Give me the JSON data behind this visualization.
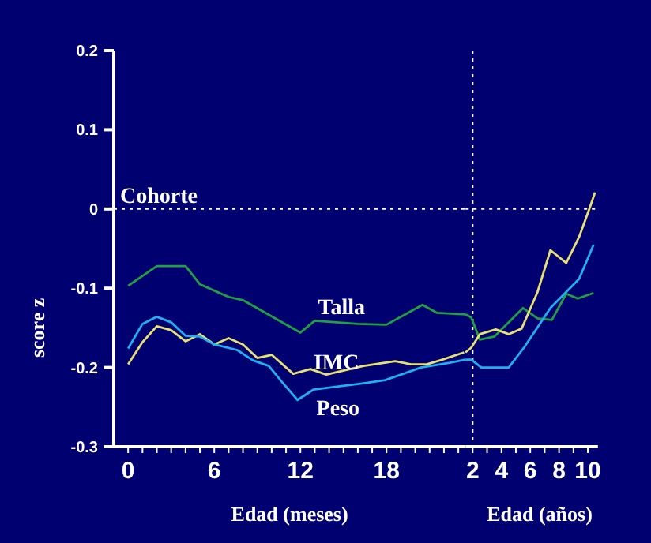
{
  "chart_data": [
    {
      "type": "line",
      "xlabel": "Edad (meses)",
      "ylabel": "score z",
      "xlim": [
        -1,
        23.5
      ],
      "ylim": [
        -0.3,
        0.2
      ],
      "xticks": [
        0,
        {
          "value": 1,
          "label": null
        },
        {
          "value": 2,
          "label": null
        },
        {
          "value": 3,
          "label": null
        },
        {
          "value": 4,
          "label": null
        },
        {
          "value": 5,
          "label": null
        },
        6,
        {
          "value": 7,
          "label": null
        },
        {
          "value": 8,
          "label": null
        },
        {
          "value": 9,
          "label": null
        },
        {
          "value": 10,
          "label": null
        },
        {
          "value": 11,
          "label": null
        },
        12,
        {
          "value": 13,
          "label": null
        },
        {
          "value": 14,
          "label": null
        },
        {
          "value": 15,
          "label": null
        },
        {
          "value": 16,
          "label": null
        },
        {
          "value": 17,
          "label": null
        },
        18,
        {
          "value": 19,
          "label": null
        },
        {
          "value": 20,
          "label": null
        },
        {
          "value": 21,
          "label": null
        },
        {
          "value": 22,
          "label": null
        },
        {
          "value": 23,
          "label": null
        }
      ],
      "yticks": [
        -0.3,
        -0.2,
        -0.1,
        0,
        0.1,
        0.2
      ],
      "marker": "none",
      "line_style": "solid",
      "ref_lines": [
        {
          "axis": "y",
          "value": 0,
          "label": "Cohorte",
          "color": "#ffffff",
          "line_style": "dotted"
        }
      ],
      "series": [
        {
          "name": "Talla",
          "color": "#20a040",
          "x": [
            0,
            2,
            4,
            5,
            7,
            8,
            12,
            13,
            16,
            18,
            20.5,
            21.5,
            23.5
          ],
          "values": [
            -0.097,
            -0.072,
            -0.072,
            -0.095,
            -0.111,
            -0.115,
            -0.156,
            -0.141,
            -0.145,
            -0.146,
            -0.121,
            -0.131,
            -0.133
          ]
        },
        {
          "name": "IMC",
          "color": "#e8e070",
          "x": [
            0,
            1,
            2,
            3,
            4,
            5,
            6,
            7,
            8,
            9,
            10,
            11.5,
            12.7,
            13.8,
            16.4,
            18.6,
            19.7,
            20.8,
            21.9,
            23.4
          ],
          "values": [
            -0.196,
            -0.168,
            -0.148,
            -0.153,
            -0.167,
            -0.158,
            -0.171,
            -0.163,
            -0.171,
            -0.188,
            -0.184,
            -0.208,
            -0.202,
            -0.209,
            -0.198,
            -0.192,
            -0.196,
            -0.196,
            -0.19,
            -0.181
          ]
        },
        {
          "name": "Peso",
          "color": "#20b0f0",
          "x": [
            0,
            1,
            2,
            3,
            4,
            5,
            6,
            7.6,
            8.7,
            9.8,
            10.7,
            11.8,
            12.9,
            16.4,
            17.9,
            20.4,
            22.4,
            23.5
          ],
          "values": [
            -0.176,
            -0.145,
            -0.136,
            -0.143,
            -0.16,
            -0.161,
            -0.171,
            -0.178,
            -0.191,
            -0.198,
            -0.218,
            -0.241,
            -0.228,
            -0.22,
            -0.216,
            -0.2,
            -0.194,
            -0.19
          ]
        }
      ]
    },
    {
      "type": "line",
      "xlabel": "Edad (años)",
      "xlim": [
        1.5,
        10.7
      ],
      "ylim": [
        -0.3,
        0.2
      ],
      "tick_labels": "x",
      "xticks": [
        2,
        {
          "value": 3,
          "label": null
        },
        4,
        {
          "value": 5,
          "label": null
        },
        6,
        {
          "value": 7,
          "label": null
        },
        8,
        {
          "value": 9,
          "label": null
        },
        10
      ],
      "marker": "none",
      "line_style": "solid",
      "ref_lines": [
        {
          "axis": "y",
          "value": 0,
          "color": "#ffffff",
          "line_style": "dotted"
        },
        {
          "axis": "x",
          "value": 2,
          "color": "#ffffff",
          "line_style": "dotted"
        }
      ],
      "series": [
        {
          "color": "#20a040",
          "x": [
            1.5,
            1.9,
            2.5,
            3.5,
            5.5,
            6.5,
            7.5,
            8.5,
            9.3,
            10.4
          ],
          "values": [
            -0.133,
            -0.137,
            -0.165,
            -0.161,
            -0.125,
            -0.138,
            -0.14,
            -0.107,
            -0.113,
            -0.106
          ]
        },
        {
          "color": "#e8e070",
          "x": [
            1.5,
            1.9,
            2.5,
            3.6,
            4.5,
            5.4,
            6.5,
            7.4,
            8.5,
            9.4,
            10.2,
            10.5
          ],
          "values": [
            -0.181,
            -0.175,
            -0.158,
            -0.152,
            -0.158,
            -0.151,
            -0.105,
            -0.052,
            -0.068,
            -0.035,
            0.005,
            0.021
          ]
        },
        {
          "color": "#20b0f0",
          "x": [
            1.5,
            1.9,
            2.6,
            4.5,
            5.6,
            7.4,
            9.4,
            10.4
          ],
          "values": [
            -0.19,
            -0.19,
            -0.2,
            -0.2,
            -0.174,
            -0.125,
            -0.088,
            -0.045
          ]
        }
      ]
    }
  ]
}
